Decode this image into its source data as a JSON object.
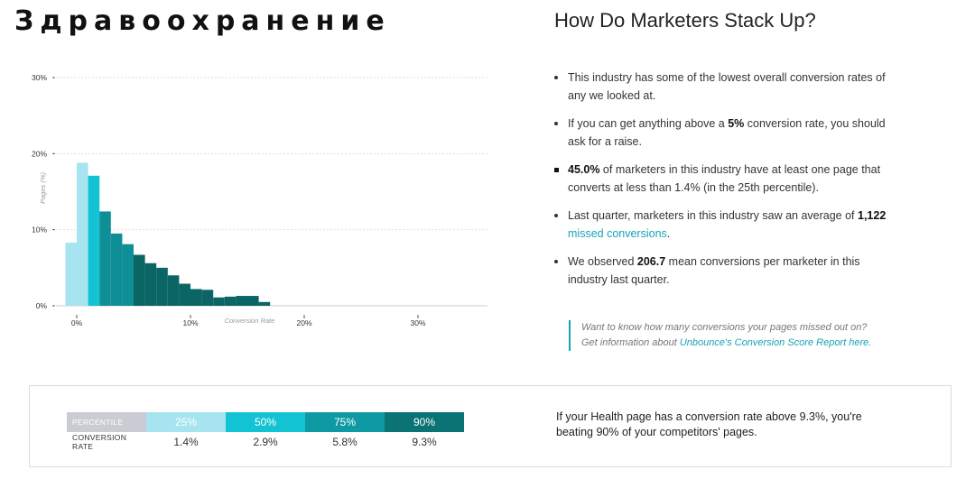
{
  "page_title": "Здравоохранение",
  "right_heading": "How Do Marketers Stack Up?",
  "colors": {
    "bar_light": "#a6e5ef",
    "bar_cyan": "#12c3d3",
    "bar_teal": "#0e8f96",
    "bar_dark": "#0b6565",
    "accent": "#17a2b8"
  },
  "bullets": [
    {
      "parts": [
        {
          "text": "This industry has some of the lowest overall conversion rates of any we looked at."
        }
      ]
    },
    {
      "parts": [
        {
          "text": "If you can get anything above a "
        },
        {
          "text": "5%",
          "bold": true
        },
        {
          "text": " conversion rate, you should ask for a raise."
        }
      ]
    },
    {
      "parts": [
        {
          "text": "45.0%",
          "bold": true
        },
        {
          "text": " of marketers in this industry have at least one page that converts at less than 1.4% (in the 25th percentile)."
        }
      ],
      "square": true
    },
    {
      "parts": [
        {
          "text": "Last quarter, marketers in this industry saw an average of "
        },
        {
          "text": "1,122",
          "bold": true
        },
        {
          "text": " "
        },
        {
          "text": "missed conversions",
          "link": true
        },
        {
          "text": "."
        }
      ]
    },
    {
      "parts": [
        {
          "text": "We observed "
        },
        {
          "text": "206.7",
          "bold": true
        },
        {
          "text": " mean conversions per marketer in this industry last quarter."
        }
      ]
    }
  ],
  "callout": {
    "text": "Want to know how many conversions your pages missed out on? Get information about ",
    "link_text": "Unbounce's Conversion Score Report here",
    "tail": "."
  },
  "percentile_table": {
    "header_label": "PERCENTILE",
    "value_label": "CONVERSION RATE",
    "columns": [
      {
        "percentile": "25%",
        "rate": "1.4%",
        "color": "#a6e5ef"
      },
      {
        "percentile": "50%",
        "rate": "2.9%",
        "color": "#12c3d3"
      },
      {
        "percentile": "75%",
        "rate": "5.8%",
        "color": "#0e9aa2"
      },
      {
        "percentile": "90%",
        "rate": "9.3%",
        "color": "#0b7373"
      }
    ],
    "label_bg": "#c9ccd3"
  },
  "bottom_note": "If your Health page has a conversion rate above 9.3%, you're beating 90% of your competitors' pages.",
  "chart_data": {
    "type": "bar",
    "title": "",
    "xlabel": "Conversion Rate",
    "ylabel": "Pages (%)",
    "xlim": [
      0,
      36
    ],
    "ylim": [
      0,
      30
    ],
    "y_ticks": [
      {
        "value": 0,
        "label": "0%"
      },
      {
        "value": 10,
        "label": "10%"
      },
      {
        "value": 20,
        "label": "20%"
      },
      {
        "value": 30,
        "label": "30%"
      }
    ],
    "x_ticks": [
      {
        "value": 0,
        "label": "0%"
      },
      {
        "value": 10,
        "label": "10%"
      },
      {
        "value": 20,
        "label": "20%"
      },
      {
        "value": 30,
        "label": "30%"
      }
    ],
    "bin_width": 1,
    "bin_start": -1,
    "values": [
      8.3,
      18.8,
      17.1,
      12.4,
      9.5,
      8.1,
      6.7,
      5.6,
      5.0,
      4.0,
      2.9,
      2.2,
      2.1,
      1.1,
      1.2,
      1.3,
      1.3,
      0.5
    ],
    "groups": [
      "light",
      "light",
      "cyan",
      "teal",
      "teal",
      "teal",
      "dark",
      "dark",
      "dark",
      "dark",
      "dark",
      "dark",
      "dark",
      "dark",
      "dark",
      "dark",
      "dark",
      "dark"
    ],
    "grid": true
  }
}
